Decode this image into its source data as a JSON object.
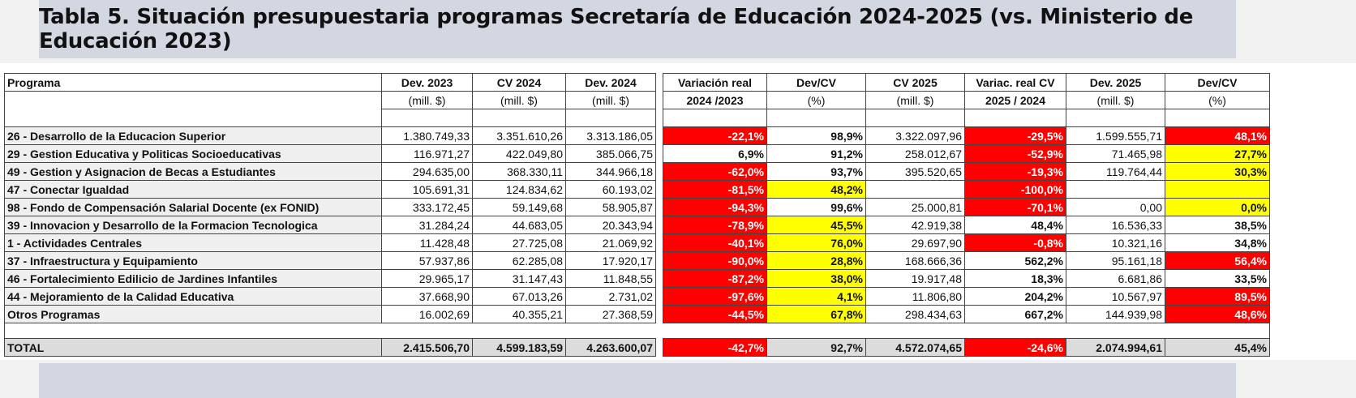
{
  "title": "Tabla 5. Situación presupuestaria programas Secretaría de Educación 2024-2025 (vs. Ministerio de Educación 2023)",
  "colors": {
    "red": "#fe0000",
    "yellow": "#ffff00",
    "title_band": "#d3d7e2"
  },
  "table": {
    "headers": [
      {
        "top": "Programa",
        "sub": ""
      },
      {
        "top": "Dev. 2023",
        "sub": "(mill. $)"
      },
      {
        "top": "CV 2024",
        "sub": "(mill. $)"
      },
      {
        "top": "Dev. 2024",
        "sub": "(mill. $)"
      },
      {
        "top": "Variación real",
        "sub": "2024 /2023"
      },
      {
        "top": "Dev/CV",
        "sub": "(%)"
      },
      {
        "top": "CV 2025",
        "sub": "(mill. $)"
      },
      {
        "top": "Variac. real CV",
        "sub": "2025 / 2024"
      },
      {
        "top": "Dev. 2025",
        "sub": "(mill. $)"
      },
      {
        "top": "Dev/CV",
        "sub": "(%)"
      }
    ],
    "rows": [
      {
        "programa": "26 - Desarrollo de la Educacion Superior",
        "values": [
          "1.380.749,33",
          "3.351.610,26",
          "3.313.186,05",
          "-22,1%",
          "98,9%",
          "3.322.097,96",
          "-29,5%",
          "1.599.555,71",
          "48,1%"
        ],
        "highlight": [
          "",
          "",
          "",
          "red",
          "",
          "",
          "red",
          "",
          "red"
        ]
      },
      {
        "programa": "29 - Gestion Educativa y Politicas Socioeducativas",
        "values": [
          "116.971,27",
          "422.049,80",
          "385.066,75",
          "6,9%",
          "91,2%",
          "258.012,67",
          "-52,9%",
          "71.465,98",
          "27,7%"
        ],
        "highlight": [
          "",
          "",
          "",
          "",
          "",
          "",
          "red",
          "",
          "yellow"
        ]
      },
      {
        "programa": "49 - Gestion y Asignacion de Becas a Estudiantes",
        "values": [
          "294.635,00",
          "368.330,11",
          "344.966,18",
          "-62,0%",
          "93,7%",
          "395.520,65",
          "-19,3%",
          "119.764,44",
          "30,3%"
        ],
        "highlight": [
          "",
          "",
          "",
          "red",
          "",
          "",
          "red",
          "",
          "yellow"
        ]
      },
      {
        "programa": "47 - Conectar Igualdad",
        "values": [
          "105.691,31",
          "124.834,62",
          "60.193,02",
          "-81,5%",
          "48,2%",
          "",
          "-100,0%",
          "",
          ""
        ],
        "highlight": [
          "",
          "",
          "",
          "red",
          "yellow",
          "",
          "red",
          "",
          "yellow"
        ]
      },
      {
        "programa": "98 - Fondo de Compensación Salarial Docente (ex FONID)",
        "values": [
          "333.172,45",
          "59.149,68",
          "58.905,87",
          "-94,3%",
          "99,6%",
          "25.000,81",
          "-70,1%",
          "0,00",
          "0,0%"
        ],
        "highlight": [
          "",
          "",
          "",
          "red",
          "",
          "",
          "red",
          "",
          "yellow"
        ]
      },
      {
        "programa": "39 - Innovacion y Desarrollo de la Formacion Tecnologica",
        "values": [
          "31.284,24",
          "44.683,05",
          "20.343,94",
          "-78,9%",
          "45,5%",
          "42.919,38",
          "48,4%",
          "16.536,33",
          "38,5%"
        ],
        "highlight": [
          "",
          "",
          "",
          "red",
          "yellow",
          "",
          "",
          "",
          ""
        ]
      },
      {
        "programa": "1 - Actividades Centrales",
        "values": [
          "11.428,48",
          "27.725,08",
          "21.069,92",
          "-40,1%",
          "76,0%",
          "29.697,90",
          "-0,8%",
          "10.321,16",
          "34,8%"
        ],
        "highlight": [
          "",
          "",
          "",
          "red",
          "yellow",
          "",
          "red",
          "",
          ""
        ]
      },
      {
        "programa": "37 - Infraestructura y Equipamiento",
        "values": [
          "57.937,86",
          "62.285,08",
          "17.920,17",
          "-90,0%",
          "28,8%",
          "168.666,36",
          "562,2%",
          "95.161,18",
          "56,4%"
        ],
        "highlight": [
          "",
          "",
          "",
          "red",
          "yellow",
          "",
          "",
          "",
          "red"
        ]
      },
      {
        "programa": "46 - Fortalecimiento Edilicio de Jardines Infantiles",
        "values": [
          "29.965,17",
          "31.147,43",
          "11.848,55",
          "-87,2%",
          "38,0%",
          "19.917,48",
          "18,3%",
          "6.681,86",
          "33,5%"
        ],
        "highlight": [
          "",
          "",
          "",
          "red",
          "yellow",
          "",
          "",
          "",
          ""
        ]
      },
      {
        "programa": "44 - Mejoramiento de la Calidad Educativa",
        "values": [
          "37.668,90",
          "67.013,26",
          "2.731,02",
          "-97,6%",
          "4,1%",
          "11.806,80",
          "204,2%",
          "10.567,97",
          "89,5%"
        ],
        "highlight": [
          "",
          "",
          "",
          "red",
          "yellow",
          "",
          "",
          "",
          "red"
        ]
      },
      {
        "programa": "Otros Programas",
        "values": [
          "16.002,69",
          "40.355,21",
          "27.368,59",
          "-44,5%",
          "67,8%",
          "298.434,63",
          "667,2%",
          "144.939,98",
          "48,6%"
        ],
        "highlight": [
          "",
          "",
          "",
          "red",
          "yellow",
          "",
          "",
          "",
          "red"
        ]
      }
    ],
    "total": {
      "programa": "TOTAL",
      "values": [
        "2.415.506,70",
        "4.599.183,59",
        "4.263.600,07",
        "-42,7%",
        "92,7%",
        "4.572.074,65",
        "-24,6%",
        "2.074.994,61",
        "45,4%"
      ],
      "highlight": [
        "",
        "",
        "",
        "red",
        "",
        "",
        "red",
        "",
        ""
      ]
    }
  }
}
